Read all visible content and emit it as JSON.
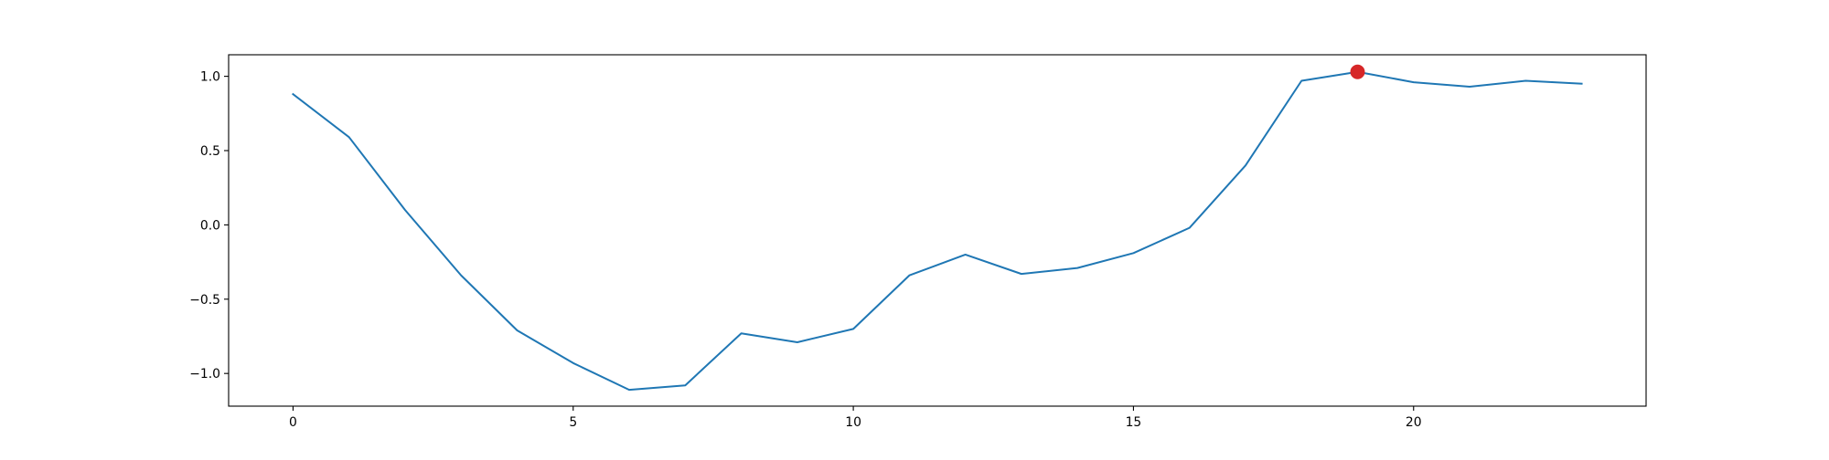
{
  "chart_data": {
    "type": "line",
    "title": "",
    "xlabel": "",
    "ylabel": "",
    "xlim": [
      -1.15,
      24.15
    ],
    "ylim": [
      -1.22,
      1.145
    ],
    "xticks": [
      0,
      5,
      10,
      15,
      20
    ],
    "xtick_labels": [
      "0",
      "5",
      "10",
      "15",
      "20"
    ],
    "yticks": [
      1.0,
      0.5,
      0.0,
      -0.5,
      -1.0
    ],
    "ytick_labels": [
      "1.0",
      "0.5",
      "0.0",
      "−0.5",
      "−1.0"
    ],
    "grid": false,
    "legend": "none",
    "series": [
      {
        "color": "#1f77b4",
        "x": [
          0,
          1,
          2,
          3,
          4,
          5,
          6,
          7,
          8,
          9,
          10,
          11,
          12,
          13,
          14,
          15,
          16,
          17,
          18,
          19,
          20,
          21,
          22,
          23
        ],
        "y": [
          0.88,
          0.59,
          0.1,
          -0.34,
          -0.71,
          -0.93,
          -1.11,
          -1.08,
          -0.73,
          -0.79,
          -0.7,
          -0.34,
          -0.2,
          -0.33,
          -0.29,
          -0.19,
          -0.02,
          0.4,
          0.97,
          1.03,
          0.96,
          0.93,
          0.97,
          0.95
        ]
      }
    ],
    "highlight": {
      "x": 19,
      "y": 1.03,
      "color": "#d62728"
    }
  }
}
